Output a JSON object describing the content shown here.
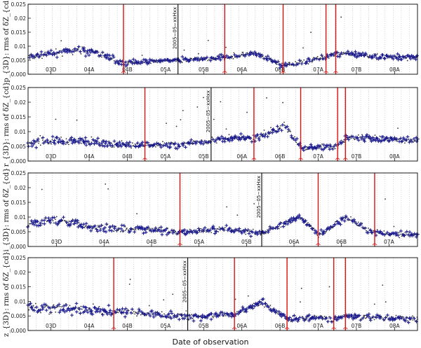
{
  "chart_data": [
    {
      "type": "scatter",
      "ylabel": "p_{3D}: rms of δZ_{cd}",
      "ylim": [
        0,
        0.025
      ],
      "yticks": [
        "0.025",
        "0.02",
        "0.015",
        "0.01",
        "0.005",
        "0.000"
      ],
      "xlabels": [
        "03D",
        "04A",
        "04B",
        "05A",
        "05B",
        "06A",
        "06B",
        "07A",
        "07B",
        "08A"
      ],
      "event_lines": [
        {
          "label": "2005−05−xxHxx",
          "x": 0.385
        }
      ],
      "red_lines": [
        0.245,
        0.505,
        0.655,
        0.765,
        0.79
      ],
      "series": [
        {
          "name": "grey",
          "color": "#333333"
        },
        {
          "name": "blue",
          "color": "#1a1a8c"
        }
      ],
      "segments": [
        [
          0.0,
          0.006,
          0.0012
        ],
        [
          0.06,
          0.0075,
          0.0015
        ],
        [
          0.13,
          0.0085,
          0.0015
        ],
        [
          0.18,
          0.0075,
          0.0015
        ],
        [
          0.245,
          0.004,
          0.001
        ],
        [
          0.3,
          0.0045,
          0.001
        ],
        [
          0.385,
          0.005,
          0.001
        ],
        [
          0.45,
          0.0055,
          0.001
        ],
        [
          0.505,
          0.006,
          0.001
        ],
        [
          0.58,
          0.0075,
          0.001
        ],
        [
          0.655,
          0.003,
          0.001
        ],
        [
          0.72,
          0.0045,
          0.001
        ],
        [
          0.79,
          0.0075,
          0.0012
        ],
        [
          0.88,
          0.0065,
          0.0012
        ],
        [
          1.0,
          0.006,
          0.0012
        ]
      ]
    },
    {
      "type": "scatter",
      "ylabel": "r_{3D}: rms of δZ_{cd}",
      "ylim": [
        0,
        0.025
      ],
      "yticks": [
        "0.025",
        "0.02",
        "0.015",
        "0.01",
        "0.005",
        "0.000"
      ],
      "xlabels": [
        "03D",
        "04A",
        "04B",
        "05A",
        "05B",
        "06A",
        "06B",
        "07A",
        "07B",
        "08A"
      ],
      "event_lines": [
        {
          "label": "2005−05−xxHxx",
          "x": 0.47
        }
      ],
      "red_lines": [
        0.3,
        0.58,
        0.7,
        0.795,
        0.815
      ],
      "series": [
        {
          "name": "grey",
          "color": "#333333"
        },
        {
          "name": "blue",
          "color": "#1a1a8c"
        }
      ],
      "segments": [
        [
          0.0,
          0.006,
          0.0015
        ],
        [
          0.07,
          0.007,
          0.0015
        ],
        [
          0.15,
          0.007,
          0.0015
        ],
        [
          0.22,
          0.0055,
          0.0012
        ],
        [
          0.3,
          0.0055,
          0.0012
        ],
        [
          0.4,
          0.0055,
          0.0012
        ],
        [
          0.47,
          0.007,
          0.0012
        ],
        [
          0.55,
          0.008,
          0.0012
        ],
        [
          0.58,
          0.0075,
          0.0012
        ],
        [
          0.66,
          0.012,
          0.0012
        ],
        [
          0.7,
          0.0045,
          0.001
        ],
        [
          0.795,
          0.005,
          0.001
        ],
        [
          0.815,
          0.008,
          0.0012
        ],
        [
          0.9,
          0.0075,
          0.0012
        ],
        [
          1.0,
          0.007,
          0.0012
        ]
      ]
    },
    {
      "type": "scatter",
      "ylabel": "i_{3D}: rms of δZ_{cd}",
      "ylim": [
        0,
        0.025
      ],
      "yticks": [
        "0.025",
        "0.02",
        "0.015",
        "0.01",
        "0.005",
        "0.000"
      ],
      "xlabels": [
        "03D",
        "04A",
        "04B",
        "05A",
        "05B",
        "06A",
        "06B",
        "07A"
      ],
      "event_lines": [
        {
          "label": "2005−05−xxHxx",
          "x": 0.6
        }
      ],
      "red_lines": [
        0.39,
        0.745,
        0.89
      ],
      "series": [
        {
          "name": "grey",
          "color": "#333333"
        },
        {
          "name": "blue",
          "color": "#1a1a8c"
        }
      ],
      "segments": [
        [
          0.0,
          0.008,
          0.0015
        ],
        [
          0.08,
          0.009,
          0.0015
        ],
        [
          0.16,
          0.0065,
          0.0015
        ],
        [
          0.26,
          0.006,
          0.0012
        ],
        [
          0.39,
          0.005,
          0.0012
        ],
        [
          0.5,
          0.006,
          0.0012
        ],
        [
          0.6,
          0.0045,
          0.0012
        ],
        [
          0.7,
          0.01,
          0.0012
        ],
        [
          0.745,
          0.004,
          0.001
        ],
        [
          0.82,
          0.01,
          0.0015
        ],
        [
          0.89,
          0.0045,
          0.001
        ],
        [
          1.0,
          0.004,
          0.001
        ]
      ]
    },
    {
      "type": "scatter",
      "ylabel": "z_{3D}: rms of δZ_{cd}",
      "ylim": [
        0,
        0.025
      ],
      "yticks": [
        "0.025",
        "0.02",
        "0.015",
        "0.01",
        "0.005",
        "0.000"
      ],
      "xlabels": [
        "03D",
        "04A",
        "04B",
        "05A",
        "05B",
        "06A",
        "06B",
        "07A",
        "07B",
        "08A"
      ],
      "event_lines": [
        {
          "label": "2005−05−xxHxx",
          "x": 0.41
        }
      ],
      "red_lines": [
        0.22,
        0.53,
        0.665,
        0.785,
        0.815
      ],
      "series": [
        {
          "name": "grey",
          "color": "#333333"
        },
        {
          "name": "blue",
          "color": "#1a1a8c"
        }
      ],
      "segments": [
        [
          0.0,
          0.008,
          0.002
        ],
        [
          0.1,
          0.0075,
          0.002
        ],
        [
          0.22,
          0.0065,
          0.0015
        ],
        [
          0.3,
          0.006,
          0.0015
        ],
        [
          0.41,
          0.0045,
          0.0012
        ],
        [
          0.53,
          0.0055,
          0.0012
        ],
        [
          0.6,
          0.01,
          0.0012
        ],
        [
          0.665,
          0.004,
          0.0012
        ],
        [
          0.72,
          0.0045,
          0.0012
        ],
        [
          0.785,
          0.004,
          0.001
        ],
        [
          0.815,
          0.005,
          0.0012
        ],
        [
          0.9,
          0.0045,
          0.0012
        ],
        [
          1.0,
          0.004,
          0.0012
        ]
      ]
    }
  ],
  "xlabel": "Date of observation"
}
